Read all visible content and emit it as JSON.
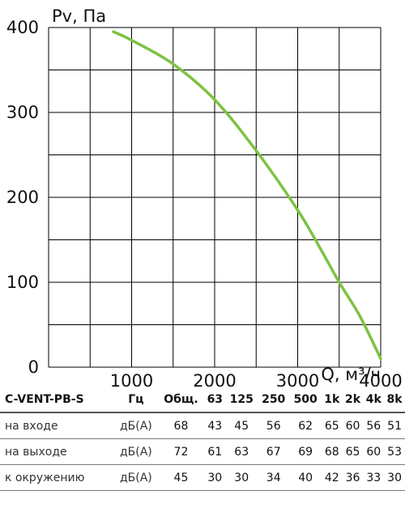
{
  "chart_data": {
    "type": "line",
    "ylabel": "Pv, Па",
    "xlabel": "Q, м³/ч",
    "xlim": [
      0,
      4000
    ],
    "ylim": [
      0,
      400
    ],
    "x_ticks": [
      "1000",
      "2000",
      "3000",
      "4000"
    ],
    "y_ticks": [
      "0",
      "100",
      "200",
      "300",
      "400"
    ],
    "grid": true,
    "series": [
      {
        "color": "#7dc243",
        "points": [
          [
            780,
            395
          ],
          [
            1000,
            385
          ],
          [
            1500,
            357
          ],
          [
            2000,
            315
          ],
          [
            2500,
            255
          ],
          [
            3000,
            185
          ],
          [
            3300,
            135
          ],
          [
            3500,
            100
          ],
          [
            3750,
            60
          ],
          [
            4000,
            10
          ]
        ]
      }
    ]
  },
  "table": {
    "model": "C-VENT-PB-S",
    "unit_header": "Гц",
    "columns": [
      "Общ.",
      "63",
      "125",
      "250",
      "500",
      "1k",
      "2k",
      "4k",
      "8k"
    ],
    "rows": [
      {
        "label": "на входе",
        "unit": "дБ(А)",
        "values": [
          "68",
          "43",
          "45",
          "56",
          "62",
          "65",
          "60",
          "56",
          "51"
        ]
      },
      {
        "label": "на выходе",
        "unit": "дБ(А)",
        "values": [
          "72",
          "61",
          "63",
          "67",
          "69",
          "68",
          "65",
          "60",
          "53"
        ]
      },
      {
        "label": "к окружению",
        "unit": "дБ(А)",
        "values": [
          "45",
          "30",
          "30",
          "34",
          "40",
          "42",
          "36",
          "33",
          "30"
        ]
      }
    ]
  }
}
